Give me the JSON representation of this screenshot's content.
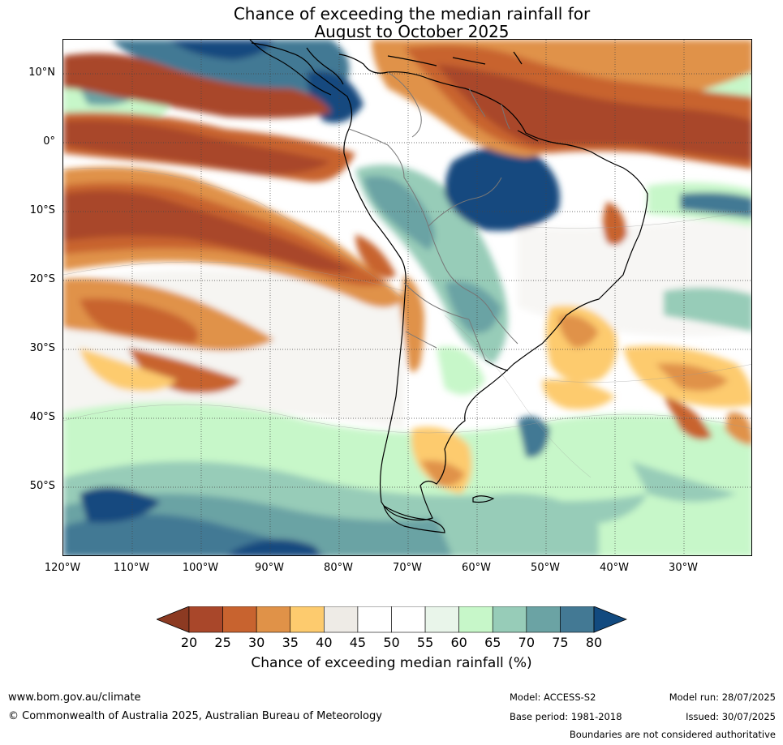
{
  "title_line1": "Chance of exceeding the median rainfall for",
  "title_line2": "August to October 2025",
  "lat_labels": [
    {
      "text": "10°N",
      "lat": 10
    },
    {
      "text": "0°",
      "lat": 0
    },
    {
      "text": "10°S",
      "lat": -10
    },
    {
      "text": "20°S",
      "lat": -20
    },
    {
      "text": "30°S",
      "lat": -30
    },
    {
      "text": "40°S",
      "lat": -40
    },
    {
      "text": "50°S",
      "lat": -50
    }
  ],
  "lon_labels": [
    {
      "text": "120°W",
      "lon": -120
    },
    {
      "text": "110°W",
      "lon": -110
    },
    {
      "text": "100°W",
      "lon": -100
    },
    {
      "text": "90°W",
      "lon": -90
    },
    {
      "text": "80°W",
      "lon": -80
    },
    {
      "text": "70°W",
      "lon": -70
    },
    {
      "text": "60°W",
      "lon": -60
    },
    {
      "text": "50°W",
      "lon": -50
    },
    {
      "text": "40°W",
      "lon": -40
    },
    {
      "text": "30°W",
      "lon": -30
    }
  ],
  "colorbar": {
    "ticks": [
      "20",
      "25",
      "30",
      "35",
      "40",
      "45",
      "50",
      "55",
      "60",
      "65",
      "70",
      "75",
      "80"
    ],
    "under_color": "#8c3a22",
    "over_color": "#124a7f",
    "colors": [
      "#a9472a",
      "#c8632f",
      "#e09248",
      "#fdcb6e",
      "#eeebe6",
      "#ffffff",
      "#ffffff",
      "#e9f5ea",
      "#c7f7c9",
      "#97ccb8",
      "#6ba3a4",
      "#437994"
    ],
    "label": "Chance of exceeding median rainfall (%)"
  },
  "footer": {
    "website": "www.bom.gov.au/climate",
    "copyright": "© Commonwealth of Australia 2025, Australian Bureau of Meteorology",
    "model": "Model: ACCESS-S2",
    "base_period": "Base period: 1981-2018",
    "model_run": "Model run: 28/07/2025",
    "issued": "Issued: 30/07/2025",
    "disclaimer": "Boundaries are not considered authoritative"
  }
}
